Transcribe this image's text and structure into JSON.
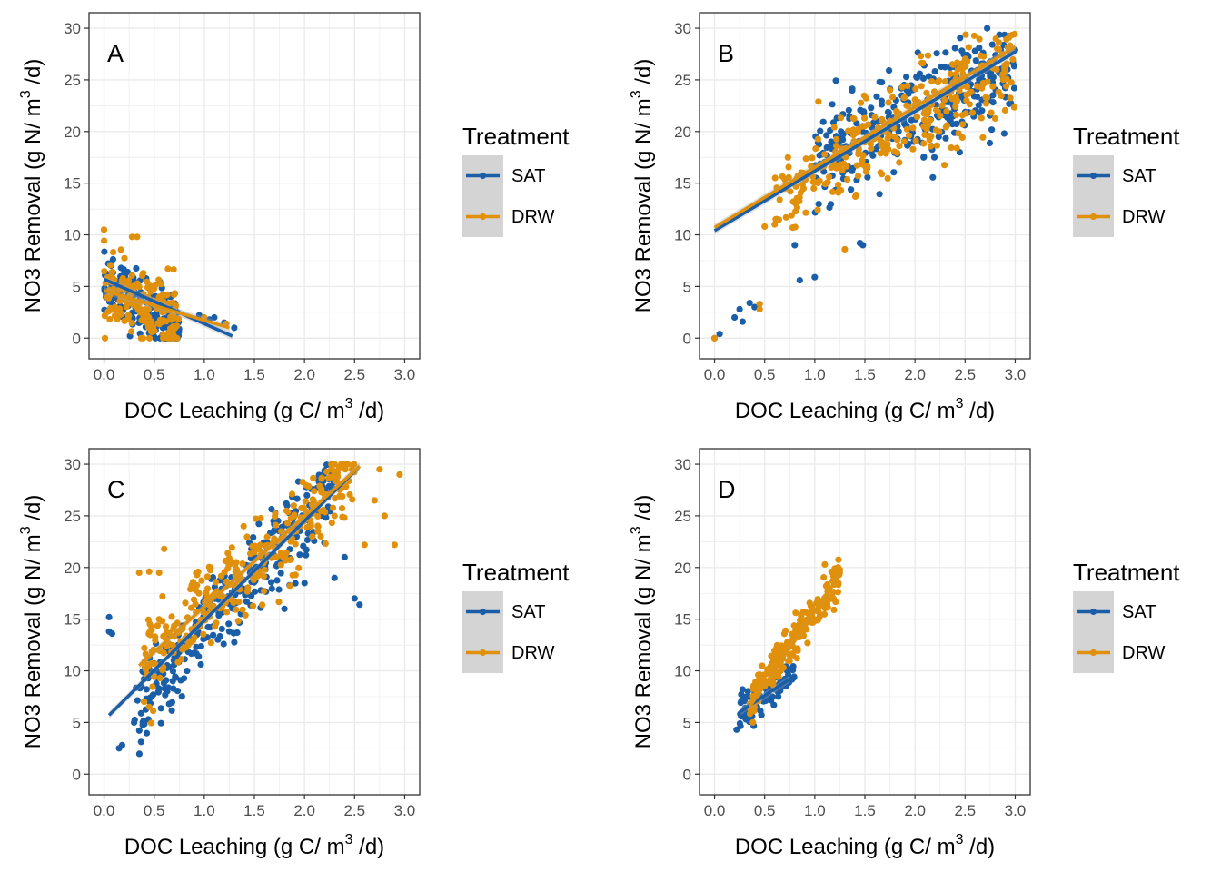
{
  "colors": {
    "SAT": "#1a5ea8",
    "DRW": "#e0900a",
    "grid": "#ebebeb",
    "band": "#aaaaaa",
    "legend_key_bg": "#d4d4d4"
  },
  "axes": {
    "ylabel": "NO3 Removal (g N/ m",
    "ylabel_sup": "3",
    "ylabel_tail": " /d)",
    "xlabel": "DOC Leaching (g C/ m",
    "xlabel_sup": "3",
    "xlabel_tail": " /d)"
  },
  "legend": {
    "title": "Treatment",
    "items": [
      "SAT",
      "DRW"
    ]
  },
  "chart_data": [
    {
      "type": "scatter",
      "panel": "A",
      "xlim": [
        -0.15,
        3.15
      ],
      "ylim": [
        -2,
        31.5
      ],
      "xticks": [
        "0.0",
        "0.5",
        "1.0",
        "1.5",
        "2.0",
        "2.5",
        "3.0"
      ],
      "yticks": [
        "0",
        "5",
        "10",
        "15",
        "20",
        "25",
        "30"
      ],
      "series": [
        {
          "name": "SAT",
          "cloud": {
            "x": [
              0.0,
              0.75
            ],
            "y_center": [
              5.2,
              1.2
            ],
            "spread": 1.5,
            "count": 190
          },
          "extra_points": [
            [
              1.1,
              2.0
            ],
            [
              1.2,
              1.5
            ],
            [
              1.3,
              1.0
            ],
            [
              0.95,
              2.2
            ],
            [
              1.05,
              1.8
            ]
          ],
          "fit": {
            "x": [
              0.0,
              1.28
            ],
            "y": [
              5.7,
              0.2
            ]
          }
        },
        {
          "name": "DRW",
          "cloud": {
            "x": [
              0.0,
              0.75
            ],
            "y_center": [
              4.8,
              1.5
            ],
            "spread": 1.7,
            "count": 170
          },
          "extra_points": [
            [
              0.0,
              10.5
            ],
            [
              0.28,
              9.8
            ],
            [
              0.33,
              9.8
            ],
            [
              1.22,
              1.4
            ],
            [
              1.0,
              2.0
            ]
          ],
          "fit": {
            "x": [
              0.0,
              1.25
            ],
            "y": [
              4.6,
              1.0
            ]
          }
        }
      ]
    },
    {
      "type": "scatter",
      "panel": "B",
      "xlim": [
        -0.15,
        3.15
      ],
      "ylim": [
        -2,
        31.5
      ],
      "xticks": [
        "0.0",
        "0.5",
        "1.0",
        "1.5",
        "2.0",
        "2.5",
        "3.0"
      ],
      "yticks": [
        "0",
        "5",
        "10",
        "15",
        "20",
        "25",
        "30"
      ],
      "series": [
        {
          "name": "SAT",
          "cloud": {
            "x": [
              1.0,
              3.0
            ],
            "y_center": [
              16.5,
              26.5
            ],
            "spread": 2.4,
            "count": 330
          },
          "extra_points": [
            [
              0.0,
              0.0
            ],
            [
              0.05,
              0.4
            ],
            [
              0.2,
              2.0
            ],
            [
              0.25,
              2.8
            ],
            [
              0.35,
              3.4
            ],
            [
              0.8,
              9.0
            ],
            [
              0.85,
              5.6
            ],
            [
              1.0,
              5.9
            ],
            [
              1.45,
              9.2
            ],
            [
              1.48,
              9.0
            ],
            [
              0.4,
              3.0
            ],
            [
              0.28,
              1.6
            ]
          ],
          "fit": {
            "x": [
              0.0,
              3.0
            ],
            "y": [
              10.4,
              27.7
            ]
          }
        },
        {
          "name": "DRW",
          "cloud": {
            "x": [
              0.6,
              3.0
            ],
            "y_center": [
              13.5,
              27.0
            ],
            "spread": 2.2,
            "count": 330
          },
          "extra_points": [
            [
              0.0,
              0.0
            ],
            [
              0.45,
              3.3
            ],
            [
              0.5,
              10.8
            ],
            [
              0.6,
              11.0
            ],
            [
              1.3,
              8.6
            ],
            [
              0.45,
              2.8
            ]
          ],
          "fit": {
            "x": [
              0.0,
              3.0
            ],
            "y": [
              10.7,
              28.2
            ]
          }
        }
      ]
    },
    {
      "type": "scatter",
      "panel": "C",
      "xlim": [
        -0.15,
        3.15
      ],
      "ylim": [
        -2,
        31.5
      ],
      "xticks": [
        "0.0",
        "0.5",
        "1.0",
        "1.5",
        "2.0",
        "2.5",
        "3.0"
      ],
      "yticks": [
        "0",
        "5",
        "10",
        "15",
        "20",
        "25",
        "30"
      ],
      "series": [
        {
          "name": "SAT",
          "cloud": {
            "x": [
              0.3,
              2.3
            ],
            "y_center": [
              6.0,
              28.0
            ],
            "spread": 2.0,
            "count": 300
          },
          "extra_points": [
            [
              0.05,
              15.2
            ],
            [
              0.05,
              13.8
            ],
            [
              0.08,
              13.6
            ],
            [
              0.15,
              2.5
            ],
            [
              0.18,
              2.8
            ],
            [
              0.3,
              5.0
            ],
            [
              0.4,
              5.0
            ],
            [
              2.3,
              19.0
            ],
            [
              2.5,
              17.0
            ],
            [
              2.55,
              16.4
            ],
            [
              2.4,
              21.0
            ],
            [
              1.8,
              16.0
            ],
            [
              2.0,
              18.5
            ]
          ],
          "fit": {
            "x": [
              0.05,
              2.55
            ],
            "y": [
              5.7,
              29.8
            ]
          }
        },
        {
          "name": "DRW",
          "cloud": {
            "x": [
              0.4,
              2.5
            ],
            "y_center": [
              11.0,
              29.0
            ],
            "spread": 2.0,
            "count": 320
          },
          "extra_points": [
            [
              0.35,
              19.5
            ],
            [
              0.45,
              19.6
            ],
            [
              0.55,
              19.5
            ],
            [
              0.6,
              21.8
            ],
            [
              2.75,
              29.5
            ],
            [
              2.95,
              29.0
            ],
            [
              2.8,
              25.0
            ],
            [
              2.9,
              22.2
            ],
            [
              2.6,
              22.2
            ],
            [
              2.7,
              26.5
            ],
            [
              0.4,
              7.0
            ],
            [
              0.45,
              6.5
            ]
          ],
          "fit": {
            "x": [
              0.35,
              2.55
            ],
            "y": [
              10.5,
              29.8
            ]
          }
        }
      ]
    },
    {
      "type": "scatter",
      "panel": "D",
      "xlim": [
        -0.15,
        3.15
      ],
      "ylim": [
        -2,
        31.5
      ],
      "xticks": [
        "0.0",
        "0.5",
        "1.0",
        "1.5",
        "2.0",
        "2.5",
        "3.0"
      ],
      "yticks": [
        "0",
        "5",
        "10",
        "15",
        "20",
        "25",
        "30"
      ],
      "series": [
        {
          "name": "SAT",
          "cloud": {
            "x": [
              0.25,
              0.8
            ],
            "y_center": [
              6.0,
              9.5
            ],
            "spread": 0.9,
            "count": 80
          },
          "extra_points": [
            [
              0.22,
              4.3
            ],
            [
              0.3,
              5.5
            ],
            [
              0.28,
              8.2
            ]
          ],
          "fit": {
            "x": [
              0.25,
              0.75
            ],
            "y": [
              6.0,
              9.2
            ]
          }
        },
        {
          "name": "DRW",
          "cloud": {
            "x": [
              0.35,
              1.25
            ],
            "y_center": [
              7.0,
              19.0
            ],
            "spread": 1.0,
            "count": 230
          },
          "extra_points": [
            [
              1.1,
              20.3
            ],
            [
              1.2,
              19.9
            ],
            [
              1.25,
              19.8
            ],
            [
              0.35,
              6.5
            ]
          ],
          "fit": {
            "x": [
              0.35,
              1.25
            ],
            "y": [
              6.5,
              19.3
            ]
          }
        }
      ]
    }
  ]
}
